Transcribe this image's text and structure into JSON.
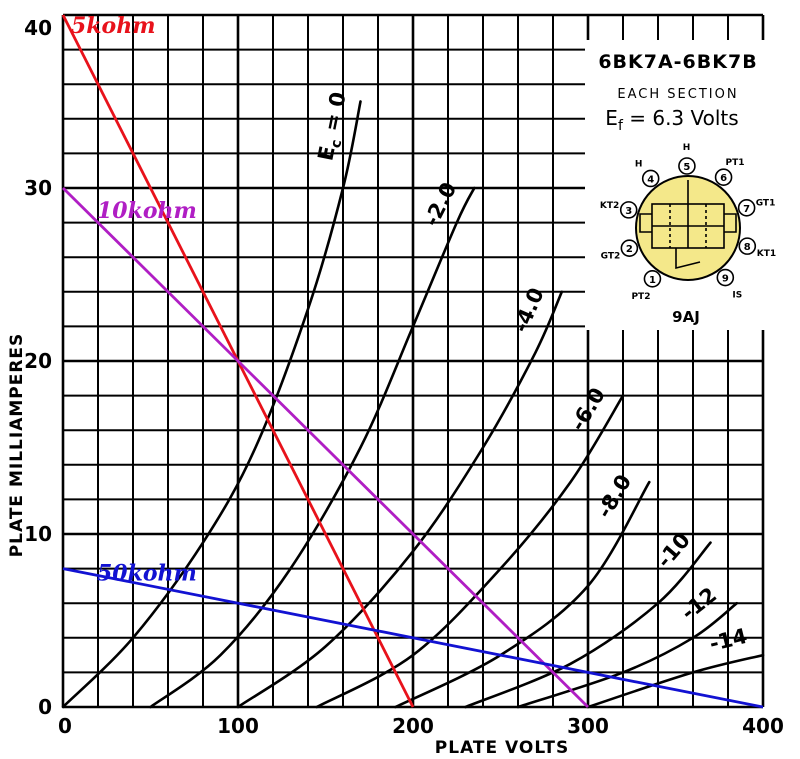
{
  "chart_data": {
    "type": "line",
    "xlabel": "PLATE VOLTS",
    "ylabel": "PLATE MILLIAMPERES",
    "xlim": [
      0,
      400
    ],
    "ylim": [
      0,
      40
    ],
    "grid": true,
    "x_ticks": [
      "0",
      "100",
      "200",
      "300",
      "400"
    ],
    "y_ticks": [
      "0",
      "10",
      "20",
      "30",
      "40"
    ],
    "curve_label_prefix": "E",
    "curve_label_sub": "c",
    "curve_label_eq": " = ",
    "series": [
      {
        "name": "0",
        "points": [
          [
            0,
            0
          ],
          [
            40,
            4
          ],
          [
            80,
            9.5
          ],
          [
            110,
            15
          ],
          [
            140,
            23
          ],
          [
            160,
            30
          ],
          [
            170,
            35
          ]
        ]
      },
      {
        "name": "-2.0",
        "points": [
          [
            50,
            0
          ],
          [
            90,
            3
          ],
          [
            130,
            8
          ],
          [
            170,
            15
          ],
          [
            200,
            22
          ],
          [
            225,
            28
          ],
          [
            235,
            30
          ]
        ]
      },
      {
        "name": "-4.0",
        "points": [
          [
            100,
            0
          ],
          [
            150,
            3.5
          ],
          [
            200,
            9
          ],
          [
            240,
            15
          ],
          [
            270,
            20.5
          ],
          [
            285,
            24
          ]
        ]
      },
      {
        "name": "-6.0",
        "points": [
          [
            145,
            0
          ],
          [
            200,
            3
          ],
          [
            250,
            8
          ],
          [
            290,
            13
          ],
          [
            320,
            18
          ]
        ]
      },
      {
        "name": "-8.0",
        "points": [
          [
            190,
            0
          ],
          [
            250,
            3
          ],
          [
            300,
            7
          ],
          [
            335,
            13
          ]
        ]
      },
      {
        "name": "-10",
        "points": [
          [
            230,
            0
          ],
          [
            290,
            2.5
          ],
          [
            340,
            6
          ],
          [
            370,
            9.5
          ]
        ]
      },
      {
        "name": "-12",
        "points": [
          [
            260,
            0
          ],
          [
            320,
            2
          ],
          [
            360,
            4
          ],
          [
            385,
            6
          ]
        ]
      },
      {
        "name": "-14",
        "points": [
          [
            300,
            0
          ],
          [
            360,
            2
          ],
          [
            400,
            3
          ]
        ]
      }
    ],
    "load_lines": [
      {
        "name": "5kohm",
        "color": "#e8121b",
        "points": [
          [
            0,
            40
          ],
          [
            200,
            0
          ]
        ]
      },
      {
        "name": "10kohm",
        "color": "#b01ec4",
        "points": [
          [
            0,
            30
          ],
          [
            300,
            0
          ]
        ]
      },
      {
        "name": "50kohm",
        "color": "#1212d2",
        "points": [
          [
            0,
            8
          ],
          [
            400,
            0
          ]
        ]
      }
    ]
  },
  "inset": {
    "tube": "6BK7A-6BK7B",
    "section": "EACH SECTION",
    "ef_main": "E",
    "ef_sub": "f",
    "ef_value": " = 6.3 Volts",
    "base": "9AJ",
    "base_fill": "#f4e88a",
    "pins": [
      {
        "num": "1",
        "label": "PT2"
      },
      {
        "num": "2",
        "label": "GT2"
      },
      {
        "num": "3",
        "label": "KT2"
      },
      {
        "num": "4",
        "label": "H"
      },
      {
        "num": "5",
        "label": "H"
      },
      {
        "num": "6",
        "label": "PT1"
      },
      {
        "num": "7",
        "label": "GT1"
      },
      {
        "num": "8",
        "label": "KT1"
      },
      {
        "num": "9",
        "label": "IS"
      }
    ]
  }
}
